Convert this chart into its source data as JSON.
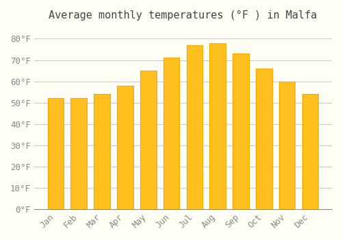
{
  "title": "Average monthly temperatures (°F ) in Malfa",
  "months": [
    "Jan",
    "Feb",
    "Mar",
    "Apr",
    "May",
    "Jun",
    "Jul",
    "Aug",
    "Sep",
    "Oct",
    "Nov",
    "Dec"
  ],
  "values": [
    52,
    52,
    54,
    58,
    65,
    71,
    77,
    78,
    73,
    66,
    60,
    54
  ],
  "bar_color_face": "#FFC020",
  "bar_color_edge": "#FFA500",
  "background_color": "#FFFEF5",
  "grid_color": "#CCCCCC",
  "ytick_labels": [
    "0°F",
    "10°F",
    "20°F",
    "30°F",
    "40°F",
    "50°F",
    "60°F",
    "70°F",
    "80°F"
  ],
  "ytick_values": [
    0,
    10,
    20,
    30,
    40,
    50,
    60,
    70,
    80
  ],
  "ylim": [
    0,
    85
  ],
  "title_fontsize": 11,
  "tick_fontsize": 9
}
